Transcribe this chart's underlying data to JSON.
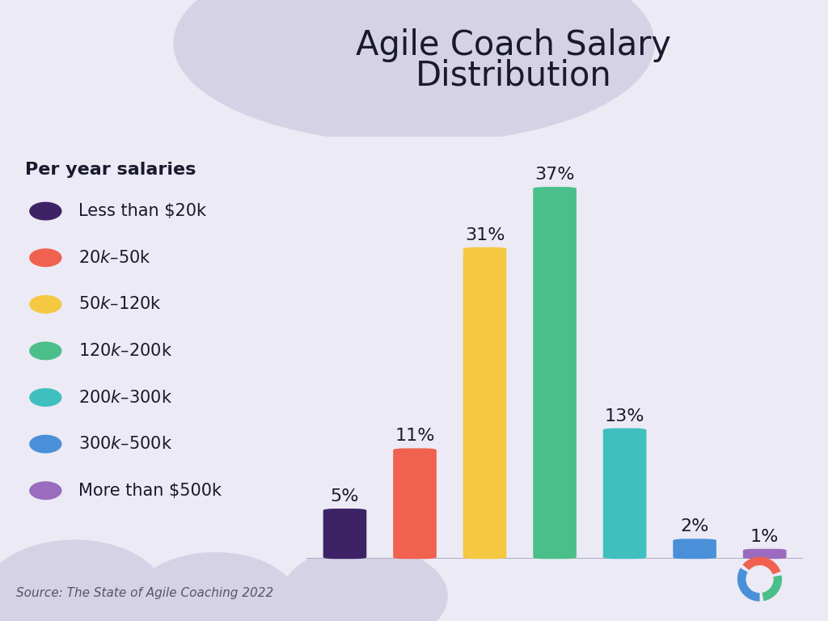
{
  "title_line1": "Agile Coach Salary",
  "title_line2": "Distribution",
  "categories": [
    "Less than $20k",
    "$20k – $50k",
    "$50k – $120k",
    "$120k – $200k",
    "$200k – $300k",
    "$300k – $500k",
    "More than $500k"
  ],
  "values": [
    5,
    11,
    31,
    37,
    13,
    2,
    1
  ],
  "bar_colors": [
    "#3d2366",
    "#f06150",
    "#f5c842",
    "#4abf8a",
    "#40bfbf",
    "#4a90d9",
    "#9b6bbf"
  ],
  "background_color": "#eceaf4",
  "blob_color": "#d5d2e6",
  "source_text": "Source: The State of Agile Coaching 2022",
  "legend_title": "Per year salaries",
  "title_fontsize": 30,
  "legend_title_fontsize": 16,
  "legend_fontsize": 15,
  "source_fontsize": 11,
  "bar_label_fontsize": 16,
  "axis_line_color": "#b0aec8",
  "text_color": "#1a1a2e",
  "logo_colors": [
    "#f06150",
    "#4a90d9",
    "#4abf8a"
  ]
}
